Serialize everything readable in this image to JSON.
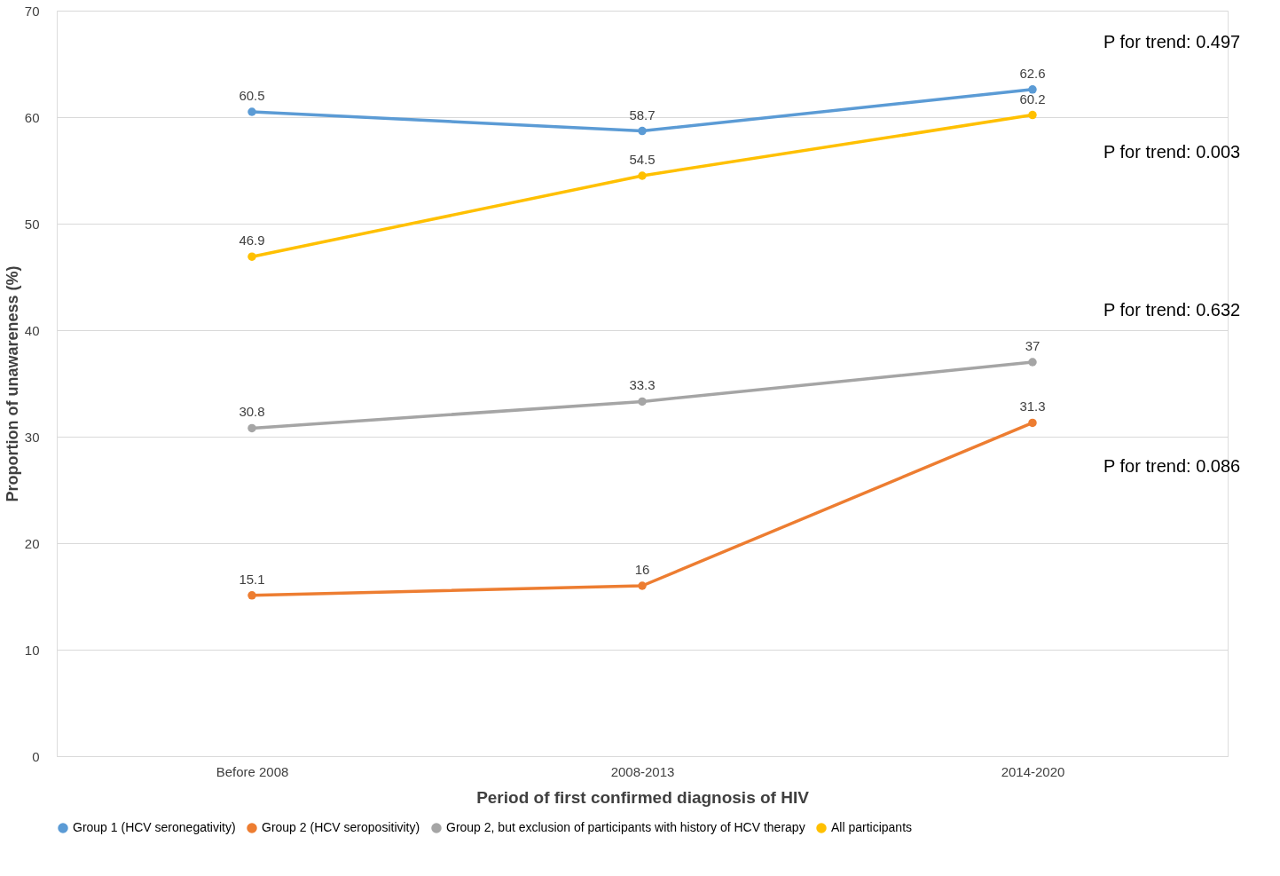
{
  "chart_data": {
    "type": "line",
    "xlabel": "Period of first confirmed diagnosis of HIV",
    "ylabel": "Proportion  of unawareness (%)",
    "categories": [
      "Before 2008",
      "2008-2013",
      "2014-2020"
    ],
    "series": [
      {
        "name": "Group 1 (HCV seronegativity)",
        "color": "#5b9bd5",
        "values": [
          60.5,
          58.7,
          62.6
        ]
      },
      {
        "name": "Group 2 (HCV seropositivity)",
        "color": "#ed7d31",
        "values": [
          15.1,
          16,
          31.3
        ]
      },
      {
        "name": "Group 2, but exclusion of participants with history of HCV therapy",
        "color": "#a5a5a5",
        "values": [
          30.8,
          33.3,
          37
        ]
      },
      {
        "name": "All participants",
        "color": "#ffc000",
        "values": [
          46.9,
          54.5,
          60.2
        ]
      }
    ],
    "ylim": [
      0,
      70
    ],
    "yticks": [
      0,
      10,
      20,
      30,
      40,
      50,
      60,
      70
    ],
    "grid": "y",
    "legend": "bottom",
    "marker": "circle",
    "line_style": "solid",
    "data_labels": true,
    "annotations": [
      "P for trend: 0.497",
      "P for trend: 0.003",
      "P for trend: 0.632",
      "P for trend: 0.086"
    ]
  }
}
